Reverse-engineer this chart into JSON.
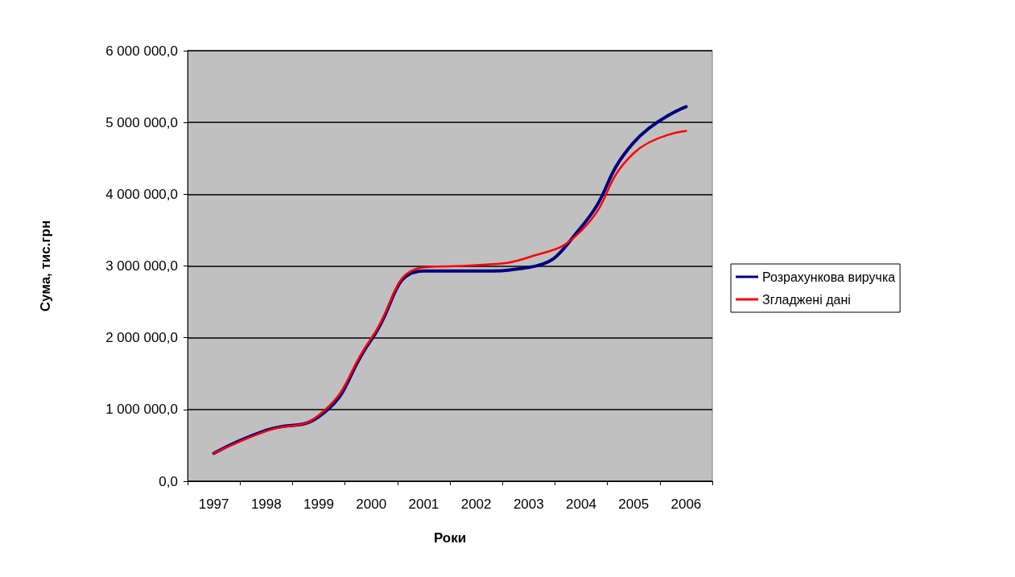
{
  "chart_data": {
    "type": "line",
    "xlabel": "Роки",
    "ylabel": "Сума, тис.грн",
    "categories": [
      "1997",
      "1998",
      "1999",
      "2000",
      "2001",
      "2002",
      "2003",
      "2004",
      "2005",
      "2006"
    ],
    "series": [
      {
        "name": "Розрахункова виручка",
        "color": "#000080",
        "values": [
          390000,
          710000,
          900000,
          1970000,
          2930000,
          2930000,
          2980000,
          3540000,
          4720000,
          5220000
        ]
      },
      {
        "name": "Згладжені дані",
        "color": "#ff0000",
        "values": [
          390000,
          700000,
          920000,
          1990000,
          2980000,
          3010000,
          3120000,
          3490000,
          4570000,
          4880000
        ]
      }
    ],
    "ylim": [
      0,
      6000000
    ],
    "yticks": [
      {
        "value": 0,
        "label": "0,0"
      },
      {
        "value": 1000000,
        "label": "1 000 000,0"
      },
      {
        "value": 2000000,
        "label": "2 000 000,0"
      },
      {
        "value": 3000000,
        "label": "3 000 000,0"
      },
      {
        "value": 4000000,
        "label": "4 000 000,0"
      },
      {
        "value": 5000000,
        "label": "5 000 000,0"
      },
      {
        "value": 6000000,
        "label": "6 000 000,0"
      }
    ],
    "grid": "y",
    "legend": "right",
    "marker": "none",
    "line_style": "solid"
  }
}
